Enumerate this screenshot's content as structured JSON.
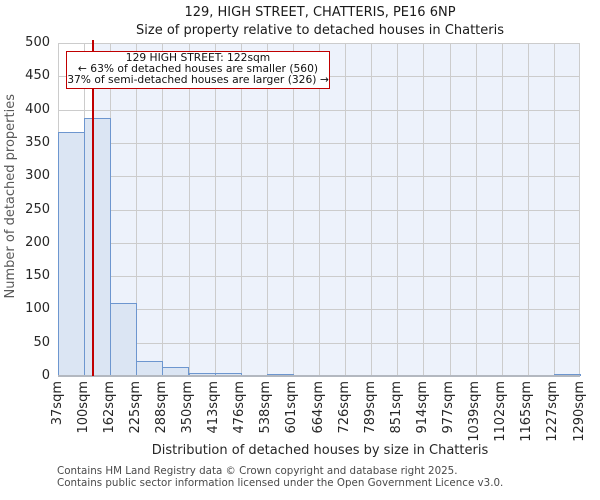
{
  "chart_data": {
    "type": "bar",
    "title": "129, HIGH STREET, CHATTERIS, PE16 6NP",
    "subtitle": "Size of property relative to detached houses in Chatteris",
    "xlabel": "Distribution of detached houses by size in Chatteris",
    "ylabel": "Number of detached properties",
    "x_tick_labels": [
      "37sqm",
      "100sqm",
      "162sqm",
      "225sqm",
      "288sqm",
      "350sqm",
      "413sqm",
      "476sqm",
      "538sqm",
      "601sqm",
      "664sqm",
      "726sqm",
      "789sqm",
      "851sqm",
      "914sqm",
      "977sqm",
      "1039sqm",
      "1102sqm",
      "1165sqm",
      "1227sqm",
      "1290sqm"
    ],
    "bin_edges_sqm": [
      37,
      100,
      162,
      225,
      288,
      350,
      413,
      476,
      538,
      601,
      664,
      726,
      789,
      851,
      914,
      977,
      1039,
      1102,
      1165,
      1227,
      1290
    ],
    "values": [
      365,
      385,
      107,
      21,
      12,
      2,
      2,
      0,
      1,
      0,
      0,
      0,
      0,
      0,
      0,
      0,
      0,
      0,
      0,
      1
    ],
    "ylim": [
      0,
      500
    ],
    "ytick_step": 50,
    "grid": true,
    "legend": "none",
    "marker": {
      "value_sqm": 122,
      "color": "#c00000"
    },
    "shade_region": {
      "from_sqm": 122,
      "to_sqm": 1290,
      "color": "#edf2fb"
    },
    "colors": {
      "bar_fill": "#dbe5f3",
      "bar_border": "#6d96cf",
      "grid": "#cccccc",
      "axis": "#b3b8c0",
      "accent_red": "#c00000"
    },
    "annotation": {
      "line1": "129 HIGH STREET: 122sqm",
      "line2": "← 63% of detached houses are smaller (560)",
      "line3": "37% of semi-detached houses are larger (326) →"
    }
  },
  "footer": {
    "line1": "Contains HM Land Registry data © Crown copyright and database right 2025.",
    "line2": "Contains public sector information licensed under the Open Government Licence v3.0."
  }
}
